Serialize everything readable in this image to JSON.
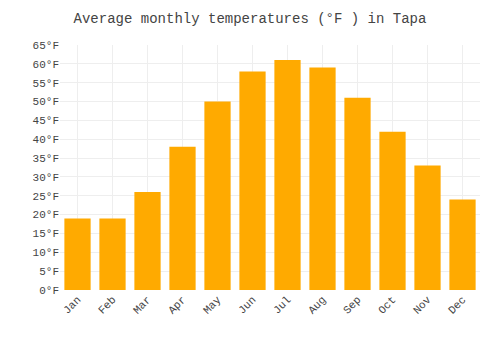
{
  "chart_data": {
    "type": "bar",
    "title": "Average monthly temperatures (°F ) in Tapa",
    "categories": [
      "Jan",
      "Feb",
      "Mar",
      "Apr",
      "May",
      "Jun",
      "Jul",
      "Aug",
      "Sep",
      "Oct",
      "Nov",
      "Dec"
    ],
    "values": [
      19,
      19,
      26,
      38,
      50,
      58,
      61,
      59,
      51,
      42,
      33,
      24
    ],
    "color": "#FFAA00",
    "ylim": [
      0,
      65
    ],
    "yticks": [
      {
        "value": 0,
        "label": "0°F"
      },
      {
        "value": 5,
        "label": "5°F"
      },
      {
        "value": 10,
        "label": "10°F"
      },
      {
        "value": 15,
        "label": "15°F"
      },
      {
        "value": 20,
        "label": "20°F"
      },
      {
        "value": 25,
        "label": "25°F"
      },
      {
        "value": 30,
        "label": "30°F"
      },
      {
        "value": 35,
        "label": "35°F"
      },
      {
        "value": 40,
        "label": "40°F"
      },
      {
        "value": 45,
        "label": "45°F"
      },
      {
        "value": 50,
        "label": "50°F"
      },
      {
        "value": 55,
        "label": "55°F"
      },
      {
        "value": 60,
        "label": "60°F"
      },
      {
        "value": 65,
        "label": "65°F"
      }
    ],
    "grid": true
  }
}
